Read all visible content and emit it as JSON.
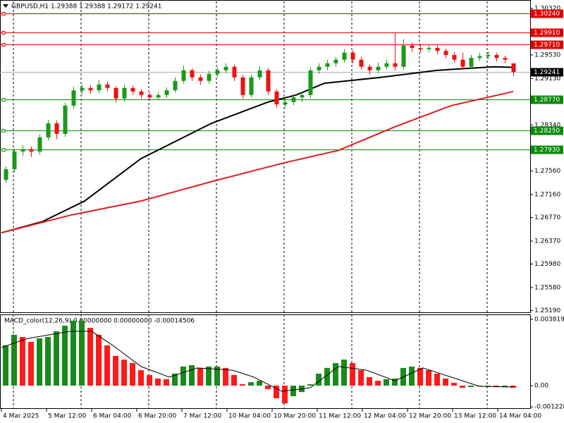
{
  "chart_data": [
    {
      "type": "candlestick",
      "title": "GBPUSD,H1  1.29388 1.29388 1.29172 1.29241",
      "up_color": "#1a9a1a",
      "down_color": "#ee1111",
      "x": [
        1.5,
        4.5,
        7.5,
        10.5,
        13.5,
        16.5,
        19.5,
        22.5,
        25.5,
        28.5,
        31.5,
        34.5,
        37.5,
        40.5,
        43.5,
        46.5,
        49.5,
        52.5,
        55.5,
        58.5,
        61.5,
        64.5,
        67.5,
        70.5,
        73.5,
        76.5,
        79.5,
        82.5,
        85.5,
        88.5,
        91.5,
        94.5,
        97.5,
        100.5,
        103.5,
        106.5,
        109.5,
        112.5,
        115.5,
        118.5,
        121.5,
        124.5,
        127.5,
        130.5,
        133.5,
        136.5,
        139.5,
        142.5,
        145.5,
        148.5,
        151.5,
        154.5,
        157.5,
        160.5,
        163.5,
        166.5,
        169.5,
        172.5,
        175.5,
        178.5,
        181.5
      ],
      "open": [
        1.2741,
        1.2759,
        1.2789,
        1.2793,
        1.2789,
        1.2813,
        1.2837,
        1.2819,
        1.2867,
        1.2893,
        1.2897,
        1.2893,
        1.2903,
        1.2897,
        1.2879,
        1.2897,
        1.2891,
        1.2885,
        1.2881,
        1.2885,
        1.2893,
        1.2909,
        1.2927,
        1.2915,
        1.2909,
        1.2921,
        1.2927,
        1.2933,
        1.2915,
        1.2885,
        1.2915,
        1.2927,
        1.2891,
        1.2869,
        1.2873,
        1.2881,
        1.2885,
        1.2927,
        1.2933,
        1.2939,
        1.2945,
        1.2957,
        1.2945,
        1.2933,
        1.2927,
        1.2933,
        1.2939,
        1.2933,
        1.2969,
        1.2965,
        1.2963,
        1.2965,
        1.296,
        1.2953,
        1.2945,
        1.2933,
        1.2948,
        1.2951,
        1.2953,
        1.2948,
        1.29388
      ],
      "high": [
        1.2764,
        1.2794,
        1.28,
        1.2798,
        1.2818,
        1.2843,
        1.2842,
        1.2872,
        1.2899,
        1.2903,
        1.2902,
        1.291,
        1.2908,
        1.29,
        1.2903,
        1.2901,
        1.2895,
        1.2889,
        1.289,
        1.2898,
        1.2915,
        1.2935,
        1.2931,
        1.292,
        1.2926,
        1.2932,
        1.2939,
        1.2937,
        1.2919,
        1.292,
        1.2934,
        1.2931,
        1.2895,
        1.288,
        1.2887,
        1.2891,
        1.2932,
        1.2939,
        1.2945,
        1.295,
        1.2963,
        1.2961,
        1.295,
        1.2937,
        1.294,
        1.2945,
        1.299,
        1.298,
        1.2974,
        1.297,
        1.2971,
        1.2969,
        1.2964,
        1.2958,
        1.2957,
        1.2953,
        1.2957,
        1.2959,
        1.2957,
        1.2952,
        1.29388
      ],
      "low": [
        1.2736,
        1.2754,
        1.2782,
        1.278,
        1.2784,
        1.2808,
        1.281,
        1.2814,
        1.2862,
        1.2886,
        1.2887,
        1.2888,
        1.2891,
        1.2872,
        1.2874,
        1.2885,
        1.2879,
        1.2876,
        1.2876,
        1.288,
        1.2889,
        1.2904,
        1.2909,
        1.2903,
        1.2904,
        1.2916,
        1.2922,
        1.2909,
        1.2879,
        1.2881,
        1.291,
        1.2885,
        1.2863,
        1.2864,
        1.2868,
        1.2873,
        1.288,
        1.2921,
        1.2927,
        1.2933,
        1.294,
        1.2939,
        1.2928,
        1.292,
        1.2922,
        1.2928,
        1.2927,
        1.2928,
        1.2958,
        1.2957,
        1.2958,
        1.2954,
        1.2947,
        1.294,
        1.2928,
        1.2929,
        1.2943,
        1.2946,
        1.2942,
        1.2939,
        1.29172
      ],
      "close": [
        1.2759,
        1.2789,
        1.2793,
        1.2789,
        1.2813,
        1.2837,
        1.2819,
        1.2867,
        1.2893,
        1.2897,
        1.2893,
        1.2903,
        1.2897,
        1.2879,
        1.2897,
        1.2891,
        1.2885,
        1.2881,
        1.2885,
        1.2893,
        1.2909,
        1.2927,
        1.2915,
        1.2909,
        1.2921,
        1.2927,
        1.2933,
        1.2915,
        1.2885,
        1.2915,
        1.2927,
        1.2891,
        1.2869,
        1.2873,
        1.2881,
        1.2885,
        1.2927,
        1.2933,
        1.2939,
        1.2945,
        1.2957,
        1.2945,
        1.2933,
        1.2927,
        1.2933,
        1.2939,
        1.2933,
        1.2969,
        1.2965,
        1.2963,
        1.2965,
        1.296,
        1.2953,
        1.2945,
        1.2933,
        1.2948,
        1.2951,
        1.2953,
        1.2948,
        1.2945,
        1.29241
      ],
      "lines": [
        {
          "color": "#000000",
          "x": [
            0,
            14.5,
            29.5,
            49.5,
            74.5,
            94.5,
            104.5,
            114.5,
            134.5,
            154.5,
            174.5,
            181.5
          ],
          "values": [
            1.2651,
            1.267,
            1.2705,
            1.2777,
            1.2837,
            1.2873,
            1.2885,
            1.2905,
            1.2915,
            1.2927,
            1.2933,
            1.2932
          ]
        },
        {
          "color": "#e01c1c",
          "x": [
            0,
            24.5,
            49.5,
            74.5,
            99.5,
            119.5,
            139.5,
            159.5,
            181.5
          ],
          "values": [
            1.2651,
            1.2681,
            1.2705,
            1.2738,
            1.2769,
            1.2791,
            1.2831,
            1.2867,
            1.2891
          ]
        }
      ],
      "levels": [
        {
          "value": 1.3024,
          "label": "1.30240",
          "color": "#e00000"
        },
        {
          "value": 1.2991,
          "label": "1.29910",
          "color": "#e00000"
        },
        {
          "value": 1.2971,
          "label": "1.29710",
          "color": "#e00000"
        },
        {
          "value": 1.2877,
          "label": "1.28770",
          "color": "#0a8a0a"
        },
        {
          "value": 1.2825,
          "label": "1.28250",
          "color": "#0a8a0a"
        },
        {
          "value": 1.2793,
          "label": "1.27930",
          "color": "#0a8a0a"
        }
      ],
      "last_price": 1.29241,
      "xlim": [
        -0.5,
        187.5
      ],
      "ylim": [
        1.2516,
        1.3044
      ],
      "yticks": [
        {
          "value": 1.3032,
          "label": "1.30320"
        },
        {
          "value": 1.2953,
          "label": "1.29530"
        },
        {
          "value": 1.2913,
          "label": "1.29130"
        },
        {
          "value": 1.2834,
          "label": "1.28340"
        },
        {
          "value": 1.2756,
          "label": "1.27560"
        },
        {
          "value": 1.2716,
          "label": "1.27160"
        },
        {
          "value": 1.2677,
          "label": "1.26770"
        },
        {
          "value": 1.2637,
          "label": "1.26370"
        },
        {
          "value": 1.2598,
          "label": "1.25980"
        },
        {
          "value": 1.2558,
          "label": "1.25580"
        },
        {
          "value": 1.2519,
          "label": "1.25190"
        }
      ],
      "grid": false
    },
    {
      "type": "macd",
      "title": "MACD_color(12,26,9) 0.00000000 0.00000000 -0.00014506",
      "up_color": "#1a8a1a",
      "down_color": "#ff1a1a",
      "signal_color": "#000000",
      "x": [
        1.5,
        4.5,
        7.5,
        10.5,
        13.5,
        16.5,
        19.5,
        22.5,
        25.5,
        28.5,
        31.5,
        34.5,
        37.5,
        40.5,
        43.5,
        46.5,
        49.5,
        52.5,
        55.5,
        58.5,
        61.5,
        64.5,
        67.5,
        70.5,
        73.5,
        76.5,
        79.5,
        82.5,
        85.5,
        88.5,
        91.5,
        94.5,
        97.5,
        100.5,
        103.5,
        106.5,
        109.5,
        112.5,
        115.5,
        118.5,
        121.5,
        124.5,
        127.5,
        130.5,
        133.5,
        136.5,
        139.5,
        142.5,
        145.5,
        148.5,
        151.5,
        154.5,
        157.5,
        160.5,
        163.5,
        166.5,
        169.5,
        172.5,
        175.5,
        178.5,
        181.5
      ],
      "values": [
        0.00232,
        0.00293,
        0.0028,
        0.00252,
        0.00272,
        0.0028,
        0.00313,
        0.00345,
        0.00374,
        0.00374,
        0.00333,
        0.00293,
        0.00232,
        0.00171,
        0.0015,
        0.0013,
        0.00089,
        0.00061,
        0.00041,
        0.00037,
        0.00069,
        0.0011,
        0.00118,
        0.00102,
        0.0011,
        0.0011,
        0.00102,
        0.00061,
        8e-05,
        0.0002,
        0.00028,
        -0.0002,
        -0.00073,
        -0.00102,
        -0.00061,
        -0.00037,
        8e-05,
        0.00069,
        0.00102,
        0.0013,
        0.0015,
        0.0013,
        0.00089,
        0.00049,
        0.00028,
        0.00037,
        0.00041,
        0.00102,
        0.0011,
        0.00102,
        0.00089,
        0.00069,
        0.00041,
        0.00016,
        -0.00012,
        -8e-05,
        -4e-05,
        -4e-05,
        -8e-05,
        -8e-05,
        -0.00012
      ],
      "signal": {
        "x": [
          0,
          9.5,
          24.5,
          32,
          39.5,
          49.5,
          59.5,
          69.5,
          82,
          89.5,
          99.5,
          109.5,
          119.5,
          129.5,
          139.5,
          149.5,
          159.5,
          169.5,
          181.5
        ],
        "values": [
          0.0022,
          0.00272,
          0.00313,
          0.00313,
          0.00232,
          0.0011,
          0.00049,
          0.00102,
          0.00089,
          0.00049,
          -0.00033,
          -0.00012,
          0.0011,
          0.00089,
          0.00028,
          0.00102,
          0.00049,
          -4e-05,
          -8e-05
        ]
      },
      "xlim": [
        -0.5,
        187.5
      ],
      "ylim": [
        -0.00134,
        0.00406
      ],
      "yticks": [
        0.0038191,
        {
          "value": 0,
          "label": "0.00"
        },
        -0.001228
      ],
      "xticks": [
        {
          "value": 0,
          "label": "4 Mar 2025"
        },
        {
          "value": 16,
          "label": "5 Mar 12:00"
        },
        {
          "value": 32,
          "label": "6 Mar 04:00"
        },
        {
          "value": 48,
          "label": "6 Mar 20:00"
        },
        {
          "value": 64,
          "label": "7 Mar 12:00"
        },
        {
          "value": 80,
          "label": "10 Mar 04:00"
        },
        {
          "value": 96,
          "label": "10 Mar 20:00"
        },
        {
          "value": 112,
          "label": "11 Mar 12:00"
        },
        {
          "value": 128,
          "label": "12 Mar 04:00"
        },
        {
          "value": 144,
          "label": "12 Mar 20:00"
        },
        {
          "value": 160,
          "label": "13 Mar 12:00"
        },
        {
          "value": 176,
          "label": "14 Mar 04:00"
        }
      ]
    }
  ]
}
